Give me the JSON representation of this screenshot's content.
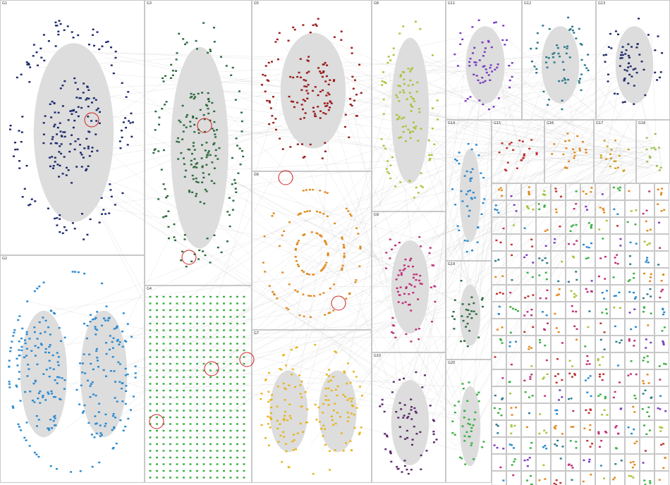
{
  "groups": [
    {
      "label": "G1"
    },
    {
      "label": "G2"
    },
    {
      "label": "G3"
    },
    {
      "label": "G4"
    },
    {
      "label": "G5"
    },
    {
      "label": "G6"
    },
    {
      "label": "G7"
    },
    {
      "label": "G8"
    },
    {
      "label": "G9"
    },
    {
      "label": "G10"
    },
    {
      "label": "G11"
    },
    {
      "label": "G12"
    },
    {
      "label": "G13"
    },
    {
      "label": "G14"
    },
    {
      "label": "G15"
    },
    {
      "label": "G16"
    },
    {
      "label": "G17"
    },
    {
      "label": "G18"
    },
    {
      "label": "G19"
    },
    {
      "label": "G20"
    }
  ]
}
